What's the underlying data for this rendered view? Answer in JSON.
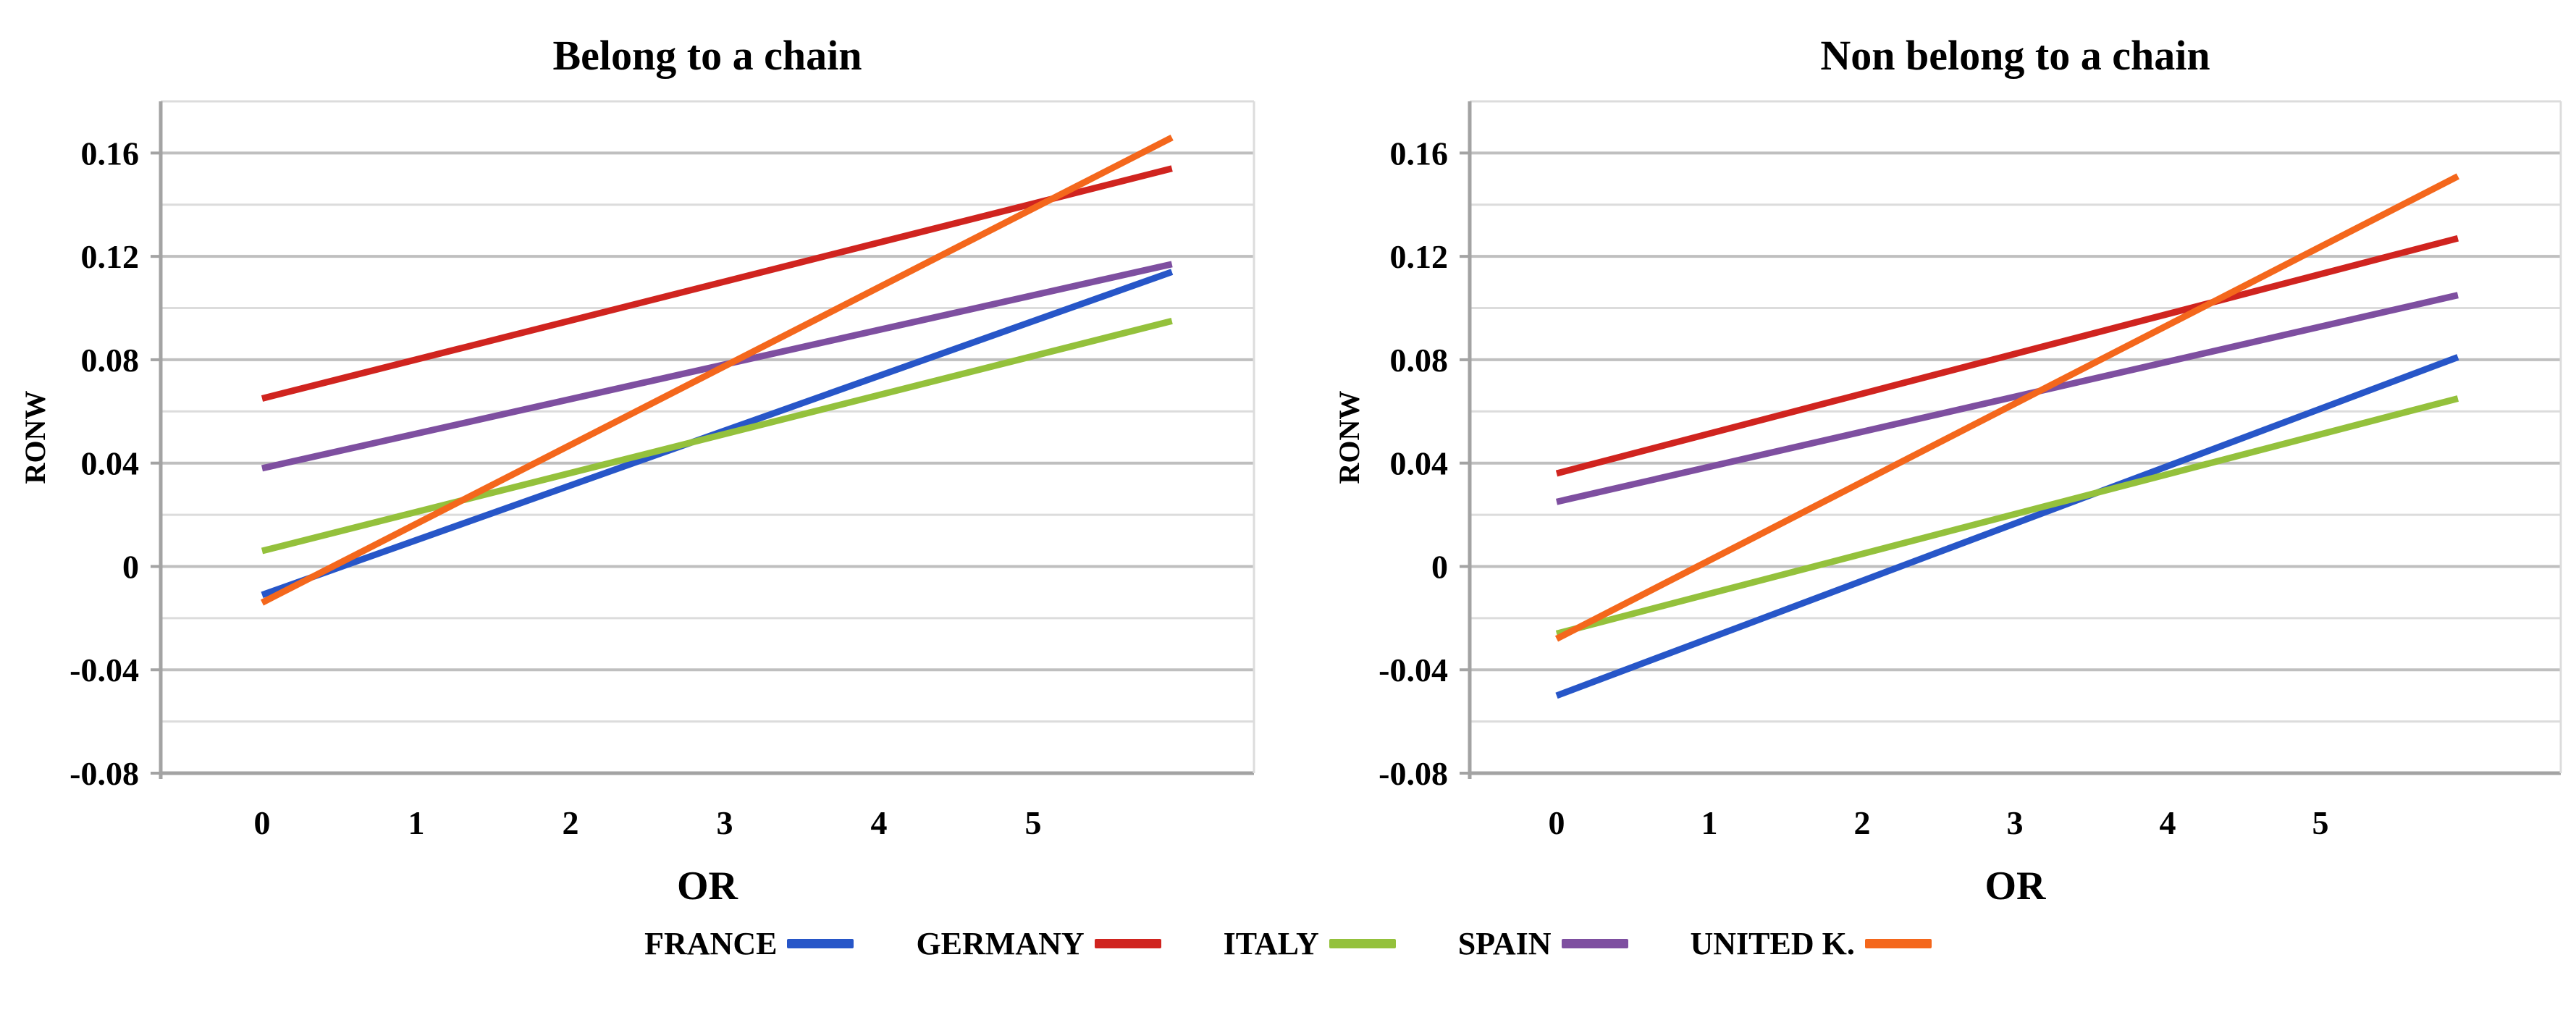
{
  "figure": {
    "background": "#ffffff",
    "text_color": "#000000",
    "grid_minor_color": "#dcdcdc",
    "grid_major_color": "#bfbfbf",
    "axis_color": "#a3a3a3"
  },
  "legend": {
    "position": "bottom-center-shared",
    "items": [
      {
        "label": "FRANCE",
        "color": "#2756c8"
      },
      {
        "label": "GERMANY",
        "color": "#d0241f"
      },
      {
        "label": "ITALY",
        "color": "#94c13c"
      },
      {
        "label": "SPAIN",
        "color": "#7e4fa0"
      },
      {
        "label": "UNITED K.",
        "color": "#f4671c"
      }
    ]
  },
  "chart_data": [
    {
      "type": "line",
      "title": "Belong to a chain",
      "xlabel": "OR",
      "ylabel": "RONW",
      "ylim": [
        -0.08,
        0.18
      ],
      "xlim": [
        -0.65,
        6.45
      ],
      "grid": true,
      "gridline_step": 0.02,
      "x_ticks": [
        0,
        1,
        2,
        3,
        4,
        5
      ],
      "x_tick_labels": [
        "0",
        "1",
        "2",
        "3",
        "4",
        "5"
      ],
      "y_ticks": [
        0.16,
        0.12,
        0.08,
        0.04,
        0,
        -0.04,
        -0.08
      ],
      "y_tick_labels": [
        "0.16",
        "0.12",
        "0.08",
        "0.04",
        "0",
        "-0.04",
        "-0.08"
      ],
      "series": [
        {
          "name": "FRANCE",
          "color": "#2756c8",
          "x": [
            0,
            5.9
          ],
          "y": [
            -0.011,
            0.114
          ]
        },
        {
          "name": "GERMANY",
          "color": "#d0241f",
          "x": [
            0,
            5.9
          ],
          "y": [
            0.065,
            0.154
          ]
        },
        {
          "name": "ITALY",
          "color": "#94c13c",
          "x": [
            0,
            5.9
          ],
          "y": [
            0.006,
            0.095
          ]
        },
        {
          "name": "SPAIN",
          "color": "#7e4fa0",
          "x": [
            0,
            5.9
          ],
          "y": [
            0.038,
            0.117
          ]
        },
        {
          "name": "UNITED K.",
          "color": "#f4671c",
          "x": [
            0,
            5.9
          ],
          "y": [
            -0.014,
            0.166
          ]
        }
      ]
    },
    {
      "type": "line",
      "title": "Non belong to a chain",
      "xlabel": "OR",
      "ylabel": "RONW",
      "ylim": [
        -0.08,
        0.18
      ],
      "xlim": [
        -0.65,
        6.45
      ],
      "grid": true,
      "gridline_step": 0.02,
      "x_ticks": [
        0,
        1,
        2,
        3,
        4,
        5
      ],
      "x_tick_labels": [
        "0",
        "1",
        "2",
        "3",
        "4",
        "5"
      ],
      "y_ticks": [
        0.16,
        0.12,
        0.08,
        0.04,
        0,
        -0.04,
        -0.08
      ],
      "y_tick_labels": [
        "0.16",
        "0.12",
        "0.08",
        "0.04",
        "0",
        "-0.04",
        "-0.08"
      ],
      "series": [
        {
          "name": "FRANCE",
          "color": "#2756c8",
          "x": [
            0,
            5.9
          ],
          "y": [
            -0.05,
            0.081
          ]
        },
        {
          "name": "GERMANY",
          "color": "#d0241f",
          "x": [
            0,
            5.9
          ],
          "y": [
            0.036,
            0.127
          ]
        },
        {
          "name": "ITALY",
          "color": "#94c13c",
          "x": [
            0,
            5.9
          ],
          "y": [
            -0.026,
            0.065
          ]
        },
        {
          "name": "SPAIN",
          "color": "#7e4fa0",
          "x": [
            0,
            5.9
          ],
          "y": [
            0.025,
            0.105
          ]
        },
        {
          "name": "UNITED K.",
          "color": "#f4671c",
          "x": [
            0,
            5.9
          ],
          "y": [
            -0.028,
            0.151
          ]
        }
      ]
    }
  ]
}
